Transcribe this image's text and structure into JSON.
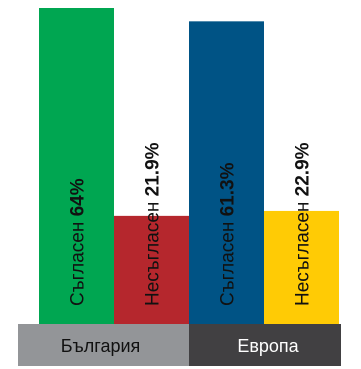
{
  "chart_data": {
    "type": "bar",
    "categories": [
      "България",
      "Европа"
    ],
    "series": [
      {
        "label": "Съгласен",
        "values": [
          64,
          61.3
        ],
        "display": [
          "64%",
          "61.3%"
        ]
      },
      {
        "label": "Несъгласен",
        "values": [
          21.9,
          22.9
        ],
        "display": [
          "21.9%",
          "22.9%"
        ]
      }
    ],
    "bar_colors": [
      [
        "#00a651",
        "#b5272d"
      ],
      [
        "#005385",
        "#ffcb05"
      ]
    ],
    "category_colors": {
      "background": [
        "#939598",
        "#414042"
      ],
      "text": [
        "#111111",
        "#ffffff"
      ]
    },
    "ylim": [
      0,
      64
    ]
  }
}
